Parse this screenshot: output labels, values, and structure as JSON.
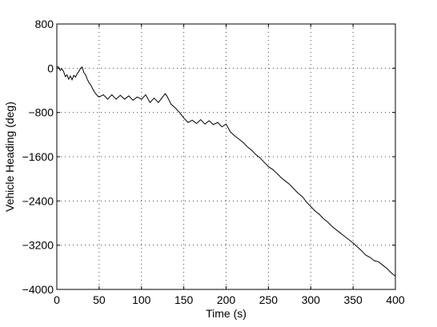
{
  "chart_data": {
    "type": "line",
    "title": "",
    "xlabel": "Time (s)",
    "ylabel": "Vehicle Heading (deg)",
    "xlim": [
      0,
      400
    ],
    "ylim": [
      -4000,
      800
    ],
    "x_ticks": [
      0,
      50,
      100,
      150,
      200,
      250,
      300,
      350,
      400
    ],
    "y_ticks": [
      800,
      0,
      -800,
      -1600,
      -2400,
      -3200,
      -4000
    ],
    "x_tick_labels": [
      "0",
      "50",
      "100",
      "150",
      "200",
      "250",
      "300",
      "350",
      "400"
    ],
    "y_tick_labels": [
      "800",
      "0",
      "−800",
      "−1600",
      "−2400",
      "−3200",
      "−4000"
    ],
    "grid": true,
    "series": [
      {
        "x": [
          0,
          2,
          4,
          6,
          8,
          10,
          12,
          14,
          16,
          18,
          20,
          22,
          24,
          26,
          28,
          30,
          32,
          34,
          36,
          38,
          40,
          42,
          44,
          46,
          48,
          50,
          55,
          60,
          65,
          70,
          75,
          80,
          85,
          90,
          95,
          100,
          105,
          110,
          115,
          120,
          125,
          128,
          130,
          135,
          140,
          145,
          150,
          155,
          160,
          165,
          170,
          175,
          180,
          185,
          190,
          195,
          200,
          205,
          210,
          215,
          220,
          225,
          230,
          235,
          240,
          245,
          250,
          255,
          260,
          265,
          270,
          275,
          280,
          285,
          290,
          295,
          300,
          305,
          310,
          315,
          320,
          325,
          330,
          335,
          340,
          345,
          350,
          355,
          360,
          365,
          370,
          375,
          380,
          385,
          390,
          395,
          400
        ],
        "y": [
          30,
          20,
          -40,
          -10,
          -60,
          -150,
          -120,
          -200,
          -140,
          -210,
          -130,
          -160,
          -100,
          -60,
          0,
          20,
          -80,
          -120,
          -200,
          -260,
          -300,
          -360,
          -420,
          -460,
          -500,
          -520,
          -480,
          -560,
          -480,
          -560,
          -490,
          -560,
          -500,
          -580,
          -520,
          -560,
          -480,
          -620,
          -540,
          -620,
          -520,
          -460,
          -500,
          -650,
          -720,
          -800,
          -900,
          -980,
          -940,
          -1000,
          -930,
          -1010,
          -950,
          -1020,
          -980,
          -1060,
          -1010,
          -1150,
          -1220,
          -1280,
          -1340,
          -1420,
          -1480,
          -1560,
          -1620,
          -1700,
          -1780,
          -1830,
          -1900,
          -1980,
          -2040,
          -2100,
          -2180,
          -2260,
          -2320,
          -2420,
          -2500,
          -2580,
          -2640,
          -2720,
          -2780,
          -2860,
          -2920,
          -2980,
          -3040,
          -3100,
          -3160,
          -3230,
          -3300,
          -3380,
          -3420,
          -3480,
          -3500,
          -3560,
          -3620,
          -3700,
          -3760
        ]
      }
    ]
  }
}
